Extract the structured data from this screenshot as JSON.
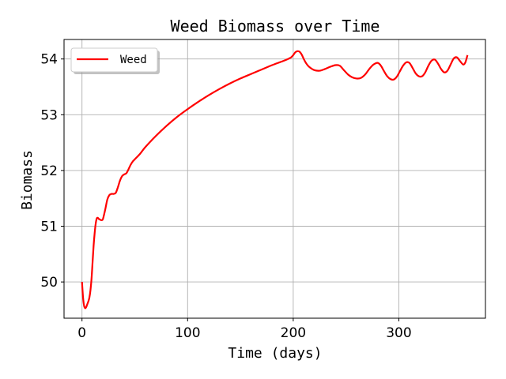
{
  "chart_data": {
    "type": "line",
    "title": "Weed Biomass over Time",
    "xlabel": "Time (days)",
    "ylabel": "Biomass",
    "xlim": [
      -17,
      382
    ],
    "ylim": [
      49.35,
      54.35
    ],
    "xticks": [
      0,
      100,
      200,
      300
    ],
    "yticks": [
      50,
      51,
      52,
      53,
      54
    ],
    "grid": true,
    "legend_position": "top-left",
    "series": [
      {
        "name": "Weed",
        "color": "#ff0000",
        "points": [
          [
            0,
            50.0
          ],
          [
            1,
            49.72
          ],
          [
            2,
            49.57
          ],
          [
            3,
            49.53
          ],
          [
            4,
            49.55
          ],
          [
            5,
            49.6
          ],
          [
            6,
            49.65
          ],
          [
            7,
            49.72
          ],
          [
            8,
            49.85
          ],
          [
            9,
            50.05
          ],
          [
            10,
            50.35
          ],
          [
            11,
            50.65
          ],
          [
            12,
            50.88
          ],
          [
            13,
            51.05
          ],
          [
            14,
            51.14
          ],
          [
            15,
            51.15
          ],
          [
            16,
            51.13
          ],
          [
            17,
            51.12
          ],
          [
            18,
            51.11
          ],
          [
            19,
            51.11
          ],
          [
            20,
            51.14
          ],
          [
            22,
            51.3
          ],
          [
            24,
            51.48
          ],
          [
            26,
            51.56
          ],
          [
            28,
            51.58
          ],
          [
            30,
            51.58
          ],
          [
            32,
            51.6
          ],
          [
            34,
            51.7
          ],
          [
            36,
            51.82
          ],
          [
            38,
            51.9
          ],
          [
            40,
            51.93
          ],
          [
            42,
            51.95
          ],
          [
            44,
            52.02
          ],
          [
            46,
            52.1
          ],
          [
            48,
            52.16
          ],
          [
            50,
            52.2
          ],
          [
            55,
            52.3
          ],
          [
            60,
            52.42
          ],
          [
            70,
            52.62
          ],
          [
            80,
            52.8
          ],
          [
            90,
            52.96
          ],
          [
            100,
            53.1
          ],
          [
            110,
            53.23
          ],
          [
            120,
            53.35
          ],
          [
            130,
            53.46
          ],
          [
            140,
            53.56
          ],
          [
            150,
            53.65
          ],
          [
            160,
            53.73
          ],
          [
            170,
            53.81
          ],
          [
            180,
            53.89
          ],
          [
            190,
            53.96
          ],
          [
            195,
            54.0
          ],
          [
            198,
            54.03
          ],
          [
            200,
            54.07
          ],
          [
            202,
            54.12
          ],
          [
            204,
            54.14
          ],
          [
            206,
            54.13
          ],
          [
            208,
            54.08
          ],
          [
            210,
            54.0
          ],
          [
            212,
            53.93
          ],
          [
            215,
            53.86
          ],
          [
            220,
            53.8
          ],
          [
            225,
            53.79
          ],
          [
            230,
            53.82
          ],
          [
            235,
            53.86
          ],
          [
            240,
            53.89
          ],
          [
            244,
            53.88
          ],
          [
            248,
            53.8
          ],
          [
            252,
            53.72
          ],
          [
            256,
            53.67
          ],
          [
            260,
            53.65
          ],
          [
            264,
            53.66
          ],
          [
            268,
            53.72
          ],
          [
            272,
            53.82
          ],
          [
            276,
            53.9
          ],
          [
            280,
            53.93
          ],
          [
            283,
            53.88
          ],
          [
            286,
            53.78
          ],
          [
            289,
            53.69
          ],
          [
            292,
            53.64
          ],
          [
            295,
            53.63
          ],
          [
            298,
            53.68
          ],
          [
            301,
            53.78
          ],
          [
            304,
            53.88
          ],
          [
            307,
            53.94
          ],
          [
            310,
            53.93
          ],
          [
            313,
            53.84
          ],
          [
            316,
            53.74
          ],
          [
            319,
            53.69
          ],
          [
            322,
            53.69
          ],
          [
            325,
            53.76
          ],
          [
            328,
            53.88
          ],
          [
            331,
            53.97
          ],
          [
            334,
            53.99
          ],
          [
            337,
            53.92
          ],
          [
            340,
            53.82
          ],
          [
            343,
            53.76
          ],
          [
            346,
            53.79
          ],
          [
            349,
            53.9
          ],
          [
            352,
            54.01
          ],
          [
            355,
            54.03
          ],
          [
            358,
            53.96
          ],
          [
            361,
            53.9
          ],
          [
            363,
            53.94
          ],
          [
            365,
            54.07
          ]
        ]
      }
    ]
  }
}
